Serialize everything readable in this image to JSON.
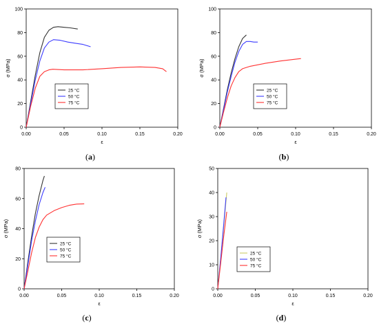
{
  "chart_data": [
    {
      "type": "line",
      "panel_label": "(a)",
      "xlabel": "ε",
      "ylabel": "σ (MPa)",
      "xlim": [
        0,
        0.2
      ],
      "ylim": [
        0,
        100
      ],
      "xticks": [
        "0.00",
        "0.05",
        "0.10",
        "0.15",
        "0.20"
      ],
      "yticks": [
        "0",
        "20",
        "40",
        "60",
        "80",
        "100"
      ],
      "grid": false,
      "legend": "center-left",
      "series": [
        {
          "name": "25 °C",
          "color": "#333333",
          "x": [
            0,
            0.006,
            0.012,
            0.018,
            0.024,
            0.03,
            0.036,
            0.042,
            0.05,
            0.058,
            0.068
          ],
          "y": [
            0,
            22,
            44,
            63,
            76,
            82,
            84.5,
            85,
            84.5,
            84,
            83
          ]
        },
        {
          "name": "50 °C",
          "color": "#3b3bff",
          "x": [
            0,
            0.006,
            0.012,
            0.018,
            0.024,
            0.03,
            0.036,
            0.045,
            0.055,
            0.065,
            0.075,
            0.085
          ],
          "y": [
            0,
            20,
            40,
            56,
            67,
            72,
            74,
            73.5,
            72,
            71,
            70,
            68
          ]
        },
        {
          "name": "75 °C",
          "color": "#ff3030",
          "x": [
            0,
            0.006,
            0.012,
            0.018,
            0.024,
            0.03,
            0.035,
            0.05,
            0.075,
            0.1,
            0.125,
            0.15,
            0.17,
            0.18,
            0.185
          ],
          "y": [
            0,
            18,
            33,
            43,
            47,
            48.5,
            49,
            48.5,
            48.5,
            49.5,
            50.5,
            51,
            50.5,
            49.5,
            47
          ]
        }
      ]
    },
    {
      "type": "line",
      "panel_label": "(b)",
      "xlabel": "ε",
      "ylabel": "σ (MPa)",
      "xlim": [
        0,
        0.2
      ],
      "ylim": [
        0,
        100
      ],
      "xticks": [
        "0.00",
        "0.05",
        "0.10",
        "0.15",
        "0.20"
      ],
      "yticks": [
        "0",
        "20",
        "40",
        "60",
        "80",
        "100"
      ],
      "grid": false,
      "legend": "center-left",
      "series": [
        {
          "name": "25 °C",
          "color": "#333333",
          "x": [
            0,
            0.005,
            0.01,
            0.015,
            0.02,
            0.025,
            0.03,
            0.035
          ],
          "y": [
            0,
            16,
            32,
            46,
            58,
            68,
            75,
            78
          ]
        },
        {
          "name": "50 °C",
          "color": "#3b3bff",
          "x": [
            0,
            0.005,
            0.01,
            0.015,
            0.02,
            0.025,
            0.03,
            0.035,
            0.04,
            0.045,
            0.05
          ],
          "y": [
            0,
            15,
            30,
            43,
            55,
            64,
            70,
            72.5,
            72.5,
            72,
            72
          ]
        },
        {
          "name": "75 °C",
          "color": "#ff3030",
          "x": [
            0,
            0.005,
            0.01,
            0.015,
            0.02,
            0.025,
            0.03,
            0.04,
            0.06,
            0.08,
            0.1,
            0.107
          ],
          "y": [
            0,
            13,
            25,
            35,
            42,
            47,
            49.5,
            51.5,
            54,
            56,
            57.5,
            58
          ]
        }
      ]
    },
    {
      "type": "line",
      "panel_label": "(c)",
      "xlabel": "ε",
      "ylabel": "σ (MPa)",
      "xlim": [
        0,
        0.2
      ],
      "ylim": [
        0,
        80
      ],
      "xticks": [
        "0.00",
        "0.05",
        "0.10",
        "0.15",
        "0.20"
      ],
      "yticks": [
        "0",
        "20",
        "40",
        "60",
        "80"
      ],
      "grid": false,
      "legend": "center-left",
      "series": [
        {
          "name": "25 °C",
          "color": "#333333",
          "x": [
            0,
            0.005,
            0.01,
            0.015,
            0.02,
            0.025,
            0.027
          ],
          "y": [
            0,
            18,
            35,
            50,
            62,
            72,
            75
          ]
        },
        {
          "name": "50 °C",
          "color": "#3b3bff",
          "x": [
            0,
            0.005,
            0.01,
            0.015,
            0.02,
            0.025,
            0.028
          ],
          "y": [
            0,
            16,
            32,
            45,
            56,
            64,
            67.5
          ]
        },
        {
          "name": "75 °C",
          "color": "#ff3030",
          "x": [
            0,
            0.005,
            0.01,
            0.015,
            0.02,
            0.025,
            0.03,
            0.04,
            0.05,
            0.06,
            0.07,
            0.08
          ],
          "y": [
            0,
            12,
            24,
            34,
            41,
            46,
            49,
            52,
            54,
            55.5,
            56.3,
            56.5
          ]
        }
      ]
    },
    {
      "type": "line",
      "panel_label": "(d)",
      "xlabel": "ε",
      "ylabel": "σ (MPa)",
      "xlim": [
        0,
        0.2
      ],
      "ylim": [
        0,
        50
      ],
      "xticks": [
        "0.00",
        "0.05",
        "0.10",
        "0.15",
        "0.20"
      ],
      "yticks": [
        "0",
        "10",
        "20",
        "30",
        "40",
        "50"
      ],
      "grid": false,
      "legend": "center-left",
      "series": [
        {
          "name": "25 °C",
          "color": "#cccc66",
          "x": [
            0,
            0.004,
            0.008,
            0.012
          ],
          "y": [
            0,
            13,
            26,
            40
          ]
        },
        {
          "name": "50 °C",
          "color": "#3b3bff",
          "x": [
            0,
            0.004,
            0.008,
            0.011
          ],
          "y": [
            0,
            13,
            27,
            38
          ]
        },
        {
          "name": "75 °C",
          "color": "#ff3030",
          "x": [
            0,
            0.004,
            0.008,
            0.012
          ],
          "y": [
            0,
            11,
            22,
            32
          ]
        }
      ]
    }
  ]
}
